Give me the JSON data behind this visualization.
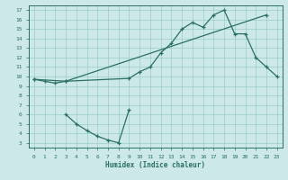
{
  "xlabel": "Humidex (Indice chaleur)",
  "bg_color": "#cce8e8",
  "grid_color": "#99cccc",
  "line_color": "#2a7060",
  "line1": {
    "x": [
      0,
      1,
      2,
      3,
      22
    ],
    "y": [
      9.7,
      9.5,
      9.3,
      9.5,
      16.5
    ]
  },
  "line2": {
    "x": [
      0,
      3,
      9,
      10,
      11,
      12,
      13,
      14,
      15,
      16,
      17,
      18,
      19,
      20,
      21,
      22,
      23
    ],
    "y": [
      9.7,
      9.5,
      9.8,
      10.5,
      11.0,
      12.5,
      13.5,
      15.0,
      15.7,
      15.2,
      16.5,
      17.0,
      14.5,
      14.5,
      12.0,
      11.0,
      10.0
    ]
  },
  "line3": {
    "x": [
      3,
      4,
      5,
      6,
      7,
      8,
      9
    ],
    "y": [
      6.0,
      5.0,
      4.3,
      3.7,
      3.3,
      3.0,
      6.5
    ]
  },
  "xlim": [
    -0.5,
    23.5
  ],
  "ylim": [
    2.5,
    17.5
  ],
  "xticks": [
    0,
    1,
    2,
    3,
    4,
    5,
    6,
    7,
    8,
    9,
    10,
    11,
    12,
    13,
    14,
    15,
    16,
    17,
    18,
    19,
    20,
    21,
    22,
    23
  ],
  "yticks": [
    3,
    4,
    5,
    6,
    7,
    8,
    9,
    10,
    11,
    12,
    13,
    14,
    15,
    16,
    17
  ]
}
